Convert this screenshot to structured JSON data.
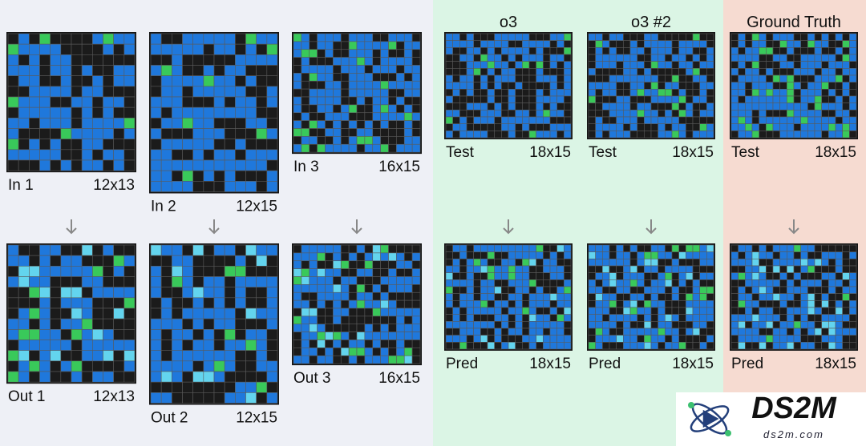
{
  "examples": [
    {
      "input": {
        "label": "In 1",
        "size": "12x13"
      },
      "output": {
        "label": "Out 1",
        "size": "12x13"
      }
    },
    {
      "input": {
        "label": "In 2",
        "size": "12x15"
      },
      "output": {
        "label": "Out 2",
        "size": "12x15"
      }
    },
    {
      "input": {
        "label": "In 3",
        "size": "16x15"
      },
      "output": {
        "label": "Out 3",
        "size": "16x15"
      }
    }
  ],
  "attempts": [
    {
      "title": "o3",
      "test": {
        "label": "Test",
        "size": "18x15"
      },
      "pred": {
        "label": "Pred",
        "size": "18x15"
      }
    },
    {
      "title": "o3 #2",
      "test": {
        "label": "Test",
        "size": "18x15"
      },
      "pred": {
        "label": "Pred",
        "size": "18x15"
      }
    },
    {
      "title": "Ground Truth",
      "test": {
        "label": "Test",
        "size": "18x15"
      },
      "pred": {
        "label": "Pred",
        "size": "18x15"
      }
    }
  ],
  "watermark": {
    "logo": "DS2M",
    "url": "ds2m.com"
  }
}
